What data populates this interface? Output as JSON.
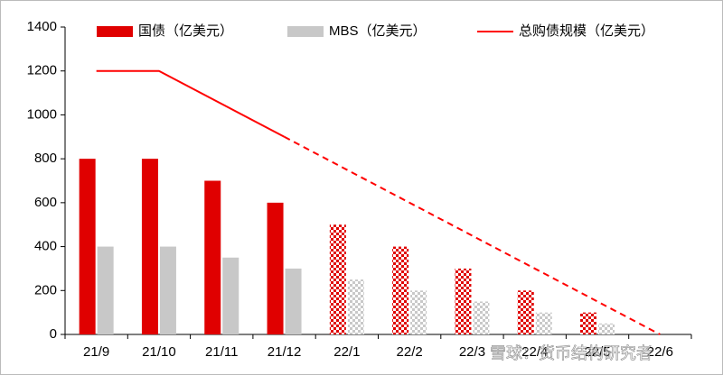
{
  "chart_data": {
    "type": "bar_line",
    "categories": [
      "21/9",
      "21/10",
      "21/11",
      "21/12",
      "22/1",
      "22/2",
      "22/3",
      "22/4",
      "22/5",
      "22/6"
    ],
    "series": [
      {
        "name": "国债（亿美元）",
        "type": "bar",
        "color": "#e00000",
        "values": [
          800,
          800,
          700,
          600,
          500,
          400,
          300,
          200,
          100,
          0
        ]
      },
      {
        "name": "MBS（亿美元）",
        "type": "bar",
        "color": "#c8c8c8",
        "values": [
          400,
          400,
          350,
          300,
          250,
          200,
          150,
          100,
          50,
          0
        ]
      },
      {
        "name": "总购债规模（亿美元）",
        "type": "line",
        "color": "#ff0000",
        "values": [
          1200,
          1200,
          1050,
          900,
          750,
          600,
          450,
          300,
          150,
          0
        ]
      }
    ],
    "projected_from": "22/1",
    "ylim": [
      0,
      1400
    ],
    "yticks": [
      0,
      200,
      400,
      600,
      800,
      1000,
      1200,
      1400
    ],
    "legend": "top",
    "watermark": "雪球：货币结构研究者"
  }
}
